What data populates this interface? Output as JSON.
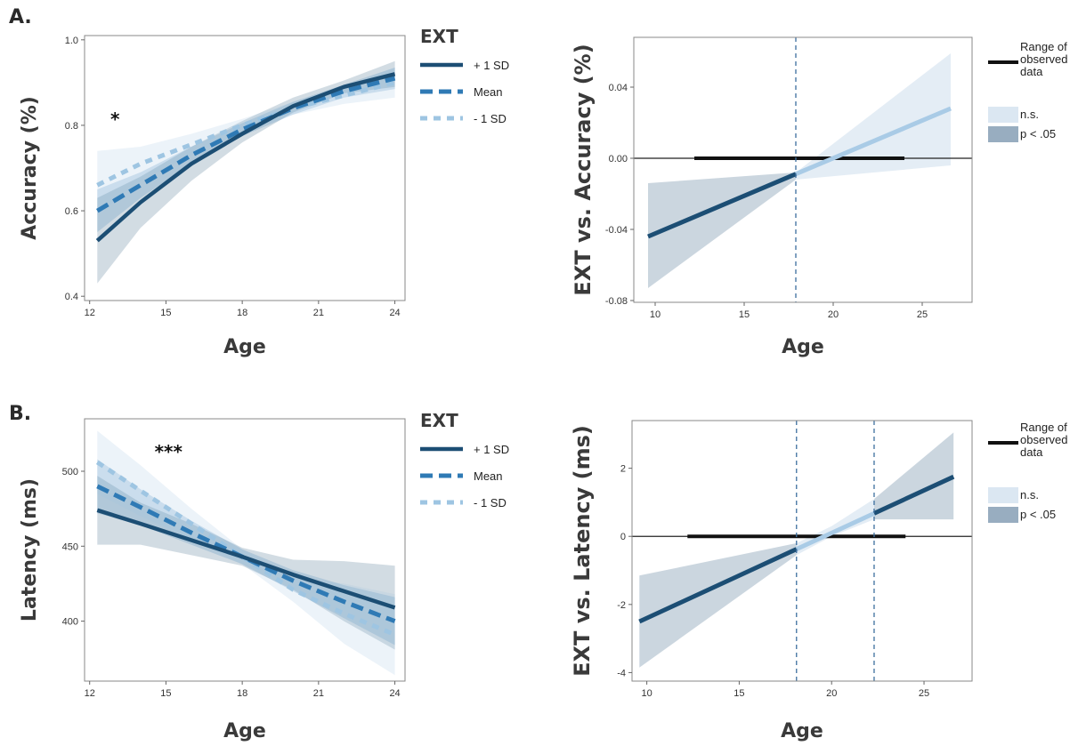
{
  "colors": {
    "plus1sd": "#1c4e74",
    "mean": "#2f7ab5",
    "minus1sd": "#9ec5e2",
    "ns_fill": "#dbe7f2",
    "sig_fill": "#98adc0",
    "range_bar": "#111111",
    "dashed_ref": "#3c6e9e"
  },
  "panels": {
    "A": {
      "label": "A."
    },
    "B": {
      "label": "B."
    }
  },
  "chart_data": [
    {
      "id": "A-left",
      "type": "line",
      "xlabel": "Age",
      "ylabel": "Accuracy (%)",
      "xlim": [
        11.8,
        24.4
      ],
      "ylim": [
        0.39,
        1.01
      ],
      "xticks": [
        12,
        15,
        18,
        21,
        24
      ],
      "yticks": [
        0.4,
        0.6,
        0.8,
        1.0
      ],
      "ytick_labels": [
        "0.4",
        "0.6",
        "0.8",
        "1.0"
      ],
      "annotation": "*",
      "annotation_at": [
        13,
        0.8
      ],
      "legend": {
        "title": "EXT",
        "entries": [
          "+ 1 SD",
          "Mean",
          "- 1 SD"
        ]
      },
      "x": [
        12.3,
        14,
        16,
        18,
        20,
        22,
        24
      ],
      "series": [
        {
          "name": "+ 1 SD",
          "key": "plus1sd",
          "values": [
            0.53,
            0.62,
            0.71,
            0.78,
            0.845,
            0.89,
            0.92
          ],
          "band_lower": [
            0.43,
            0.56,
            0.67,
            0.76,
            0.83,
            0.875,
            0.89
          ],
          "band_upper": [
            0.63,
            0.68,
            0.75,
            0.81,
            0.865,
            0.905,
            0.95
          ]
        },
        {
          "name": "Mean",
          "key": "mean",
          "values": [
            0.6,
            0.66,
            0.73,
            0.79,
            0.84,
            0.88,
            0.91
          ],
          "band_lower": [
            0.55,
            0.63,
            0.71,
            0.775,
            0.825,
            0.865,
            0.885
          ],
          "band_upper": [
            0.65,
            0.69,
            0.75,
            0.805,
            0.855,
            0.895,
            0.935
          ]
        },
        {
          "name": "- 1 SD",
          "key": "minus1sd",
          "values": [
            0.66,
            0.71,
            0.755,
            0.8,
            0.84,
            0.87,
            0.9
          ],
          "band_lower": [
            0.59,
            0.67,
            0.73,
            0.785,
            0.825,
            0.85,
            0.865
          ],
          "band_upper": [
            0.74,
            0.75,
            0.78,
            0.815,
            0.855,
            0.89,
            0.935
          ]
        }
      ]
    },
    {
      "id": "A-right",
      "type": "line",
      "xlabel": "Age",
      "ylabel": "EXT vs. Accuracy (%)",
      "xlim": [
        8.8,
        27.8
      ],
      "ylim": [
        -0.081,
        0.068
      ],
      "xticks": [
        10,
        15,
        20,
        25
      ],
      "yticks": [
        -0.08,
        -0.04,
        0.0,
        0.04
      ],
      "ytick_labels": [
        "-0.08",
        "-0.04",
        "0.00",
        "0.04"
      ],
      "zero_line": 0,
      "slope_line": {
        "x": [
          9.6,
          26.6
        ],
        "y": [
          -0.044,
          0.028
        ]
      },
      "ci_band": {
        "x": [
          9.6,
          17.9,
          26.6
        ],
        "lower": [
          -0.073,
          -0.012,
          -0.004
        ],
        "upper": [
          -0.014,
          -0.008,
          0.059
        ]
      },
      "regions_of_significance": [
        {
          "from": 9.6,
          "to": 17.9,
          "label": "p < .05"
        }
      ],
      "nonsignificant_region": {
        "from": 17.9,
        "to": 26.6,
        "label": "n.s."
      },
      "dashed_vlines": [
        17.9
      ],
      "observed_range": [
        12.2,
        24.0
      ],
      "legend": {
        "range_label_lines": [
          "Range of",
          "observed",
          "data"
        ],
        "ns": "n.s.",
        "sig": "p < .05"
      }
    },
    {
      "id": "B-left",
      "type": "line",
      "xlabel": "Age",
      "ylabel": "Latency (ms)",
      "xlim": [
        11.8,
        24.4
      ],
      "ylim": [
        360,
        535
      ],
      "xticks": [
        12,
        15,
        18,
        21,
        24
      ],
      "yticks": [
        400,
        450,
        500
      ],
      "ytick_labels": [
        "400",
        "450",
        "500"
      ],
      "annotation": "***",
      "annotation_at": [
        15.1,
        509
      ],
      "legend": {
        "title": "EXT",
        "entries": [
          "+ 1 SD",
          "Mean",
          "- 1 SD"
        ]
      },
      "x": [
        12.3,
        14,
        16,
        18,
        20,
        22,
        24
      ],
      "series": [
        {
          "name": "+ 1 SD",
          "key": "plus1sd",
          "values": [
            474,
            465,
            454,
            443,
            431,
            420,
            409
          ],
          "band_lower": [
            451,
            451,
            444,
            437,
            421,
            400,
            381
          ],
          "band_upper": [
            497,
            479,
            465,
            449,
            441,
            440,
            437
          ]
        },
        {
          "name": "Mean",
          "key": "mean",
          "values": [
            490,
            476,
            459,
            443,
            427,
            413,
            400
          ],
          "band_lower": [
            472,
            464,
            451,
            438,
            420,
            402,
            384
          ],
          "band_upper": [
            508,
            488,
            467,
            448,
            434,
            424,
            416
          ]
        },
        {
          "name": "- 1 SD",
          "key": "minus1sd",
          "values": [
            506,
            487,
            465,
            443,
            421,
            405,
            391
          ],
          "band_lower": [
            485,
            470,
            455,
            438,
            413,
            385,
            364
          ],
          "band_upper": [
            527,
            504,
            475,
            448,
            429,
            425,
            418
          ]
        }
      ]
    },
    {
      "id": "B-right",
      "type": "line",
      "xlabel": "Age",
      "ylabel": "EXT vs. Latency (ms)",
      "xlim": [
        9.2,
        27.6
      ],
      "ylim": [
        -4.25,
        3.4
      ],
      "xticks": [
        10,
        15,
        20,
        25
      ],
      "yticks": [
        -4,
        -2,
        0,
        2
      ],
      "ytick_labels": [
        "-4",
        "-2",
        "0",
        "2"
      ],
      "zero_line": 0,
      "slope_line": {
        "x": [
          9.6,
          26.6
        ],
        "y": [
          -2.5,
          1.75
        ]
      },
      "ci_band": {
        "x": [
          9.6,
          18.1,
          20.0,
          22.3,
          26.6
        ],
        "lower": [
          -3.85,
          -0.55,
          0.0,
          0.5,
          0.5
        ],
        "upper": [
          -1.15,
          -0.2,
          0.3,
          1.1,
          3.05
        ]
      },
      "regions_of_significance": [
        {
          "from": 9.6,
          "to": 18.1,
          "label": "p < .05"
        },
        {
          "from": 22.3,
          "to": 26.6,
          "label": "p < .05"
        }
      ],
      "nonsignificant_region": {
        "from": 18.1,
        "to": 22.3,
        "label": "n.s."
      },
      "dashed_vlines": [
        18.1,
        22.3
      ],
      "observed_range": [
        12.2,
        24.0
      ],
      "legend": {
        "range_label_lines": [
          "Range of",
          "observed",
          "data"
        ],
        "ns": "n.s.",
        "sig": "p < .05"
      }
    }
  ]
}
